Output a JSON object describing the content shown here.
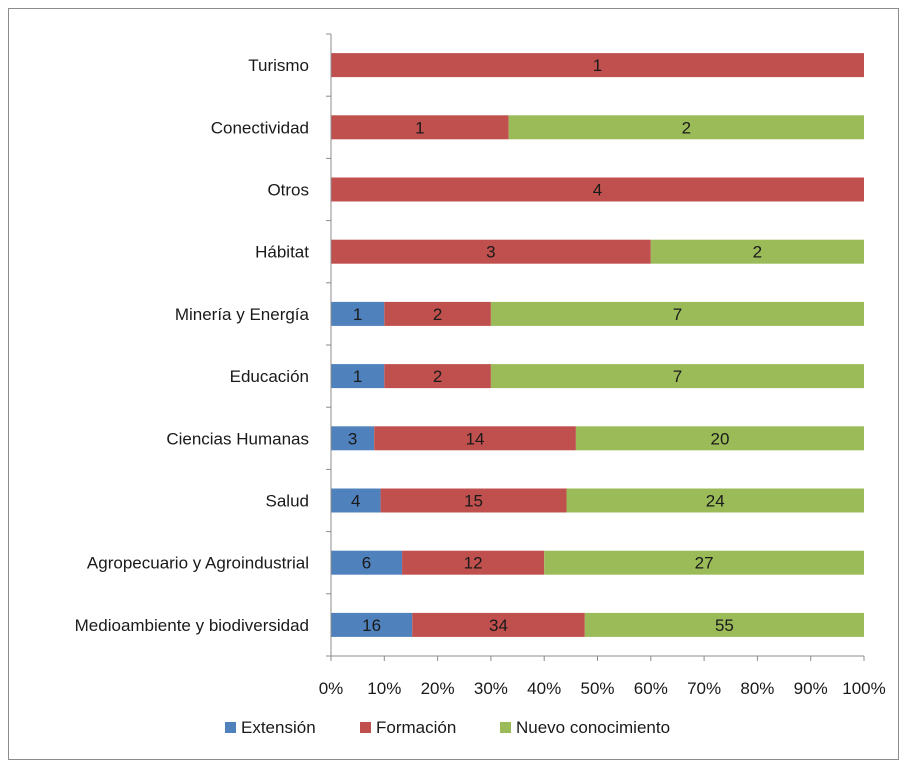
{
  "chart_data": {
    "type": "bar",
    "orientation": "horizontal",
    "stacking": "percent",
    "categories": [
      "Turismo",
      "Conectividad",
      "Otros",
      "Hábitat",
      "Minería y Energía",
      "Educación",
      "Ciencias Humanas",
      "Salud",
      "Agropecuario y Agroindustrial",
      "Medioambiente y biodiversidad"
    ],
    "series": [
      {
        "name": "Extensión",
        "color": "#4f81bd",
        "values": [
          0,
          0,
          0,
          0,
          1,
          1,
          3,
          4,
          6,
          16
        ]
      },
      {
        "name": "Formación",
        "color": "#c0504d",
        "values": [
          1,
          1,
          4,
          3,
          2,
          2,
          14,
          15,
          12,
          34
        ]
      },
      {
        "name": "Nuevo conocimiento",
        "color": "#9bbb59",
        "values": [
          0,
          2,
          0,
          2,
          7,
          7,
          20,
          24,
          27,
          55
        ]
      }
    ],
    "x_ticks": [
      "0%",
      "10%",
      "20%",
      "30%",
      "40%",
      "50%",
      "60%",
      "70%",
      "80%",
      "90%",
      "100%"
    ],
    "xlim": [
      0,
      100
    ],
    "grid": false,
    "legend_position": "bottom",
    "data_labels": true
  }
}
